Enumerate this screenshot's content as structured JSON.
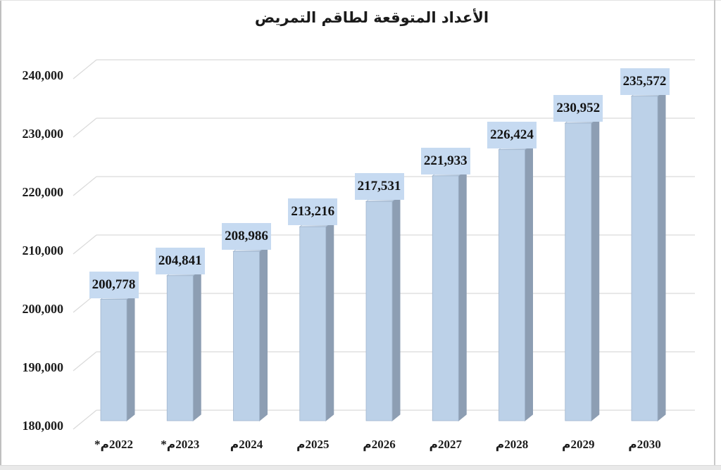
{
  "chart_data": {
    "type": "bar",
    "style": "3d-column",
    "title": "الأعداد المتوقعة لطاقم التمريض",
    "categories": [
      "2022م*",
      "2023م*",
      "2024م",
      "2025م",
      "2026م",
      "2027م",
      "2028م",
      "2029م",
      "2030م"
    ],
    "values": [
      200778,
      204841,
      208986,
      213216,
      217531,
      221933,
      226424,
      230952,
      235572
    ],
    "data_labels": [
      "200,778",
      "204,841",
      "208,986",
      "213,216",
      "217,531",
      "221,933",
      "226,424",
      "230,952",
      "235,572"
    ],
    "y_ticks": [
      {
        "value": 240000,
        "label": "240,000"
      },
      {
        "value": 230000,
        "label": "230,000"
      },
      {
        "value": 220000,
        "label": "220,000"
      },
      {
        "value": 210000,
        "label": "210,000"
      },
      {
        "value": 200000,
        "label": "200,000"
      },
      {
        "value": 190000,
        "label": "190,000"
      },
      {
        "value": 180000,
        "label": "180,000"
      }
    ],
    "ylim": [
      180000,
      240000
    ],
    "xlabel": "",
    "ylabel": "",
    "grid": true,
    "legend": "none",
    "colors": {
      "bar_front": "#bcd1e8",
      "bar_top_light": "#dde7f3",
      "bar_top_dark": "#aec1d7",
      "bar_side": "#8d9eb3",
      "bar_edge": "#a2b7cf",
      "label_box": "#c6daf1",
      "gridline": "#d9d9d9",
      "text": "#1a1a1a"
    }
  }
}
